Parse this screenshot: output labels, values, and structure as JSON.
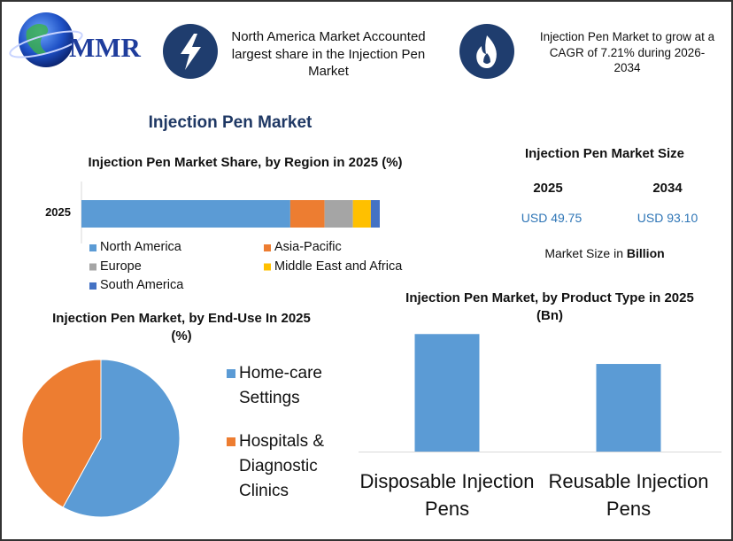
{
  "header": {
    "logo": "MMR",
    "highlight_1": "North America Market Accounted largest share in the Injection Pen Market",
    "highlight_2": "Injection Pen Market to grow at a CAGR of 7.21% during 2026-2034"
  },
  "title": "Injection Pen Market",
  "market_size": {
    "title": "Injection Pen Market Size",
    "columns": [
      {
        "year": "2025",
        "value": "USD 49.75"
      },
      {
        "year": "2034",
        "value": "USD 93.10"
      }
    ],
    "note": "Market Size in",
    "note_unit": "Billion"
  },
  "chart_data": [
    {
      "type": "bar",
      "horizontal": true,
      "stacked": true,
      "title": "Injection Pen Market Share, by Region in 2025 (%)",
      "categories": [
        "2025"
      ],
      "xlim": [
        0,
        100
      ],
      "series": [
        {
          "name": "North America",
          "color": "#5b9bd5",
          "values": [
            70
          ]
        },
        {
          "name": "Asia-Pacific",
          "color": "#ed7d31",
          "values": [
            11.5
          ]
        },
        {
          "name": "Europe",
          "color": "#a5a5a5",
          "values": [
            9.5
          ]
        },
        {
          "name": "Middle East and Africa",
          "color": "#ffc000",
          "values": [
            6
          ]
        },
        {
          "name": "South America",
          "color": "#4472c4",
          "values": [
            3
          ]
        }
      ]
    },
    {
      "type": "pie",
      "title": "Injection Pen Market, by End-Use In 2025 (%)",
      "categories": [
        "Home-care Settings",
        "Hospitals & Diagnostic Clinics"
      ],
      "values": [
        58,
        42
      ],
      "colors": [
        "#5b9bd5",
        "#ed7d31"
      ]
    },
    {
      "type": "bar",
      "horizontal": false,
      "stacked": false,
      "title": "Injection Pen Market, by Product Type in 2025 (Bn)",
      "categories": [
        "Disposable Injection Pens",
        "Reusable Injection Pens"
      ],
      "values": [
        28.5,
        21.25
      ],
      "color": "#5b9bd5",
      "ylim": [
        0,
        35
      ]
    }
  ]
}
